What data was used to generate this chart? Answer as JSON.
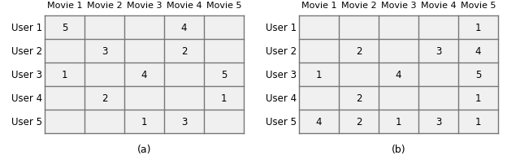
{
  "table_a": {
    "col_labels": [
      "Movie 1",
      "Movie 2",
      "Movie 3",
      "Movie 4",
      "Movie 5"
    ],
    "row_labels": [
      "User 1",
      "User 2",
      "User 3",
      "User 4",
      "User 5"
    ],
    "values": [
      [
        "5",
        "",
        "",
        "4",
        ""
      ],
      [
        "",
        "3",
        "",
        "2",
        ""
      ],
      [
        "1",
        "",
        "4",
        "",
        "5"
      ],
      [
        "",
        "2",
        "",
        "",
        "1"
      ],
      [
        "",
        "",
        "1",
        "3",
        ""
      ]
    ],
    "caption": "(a)"
  },
  "table_b": {
    "col_labels": [
      "Movie 1",
      "Movie 2",
      "Movie 3",
      "Movie 4",
      "Movie 5"
    ],
    "row_labels": [
      "User 1",
      "User 2",
      "User 3",
      "User 4",
      "User 5"
    ],
    "values": [
      [
        "",
        "",
        "",
        "",
        "1"
      ],
      [
        "",
        "2",
        "",
        "3",
        "4"
      ],
      [
        "1",
        "",
        "4",
        "",
        "5"
      ],
      [
        "",
        "2",
        "",
        "",
        "1"
      ],
      [
        "4",
        "2",
        "1",
        "3",
        "1"
      ]
    ],
    "caption": "(b)"
  },
  "cell_bg": "#f0f0f0",
  "grid_color": "#777777",
  "text_color": "#000000",
  "header_fontsize": 8,
  "cell_fontsize": 8.5,
  "label_fontsize": 8.5,
  "caption_fontsize": 9
}
